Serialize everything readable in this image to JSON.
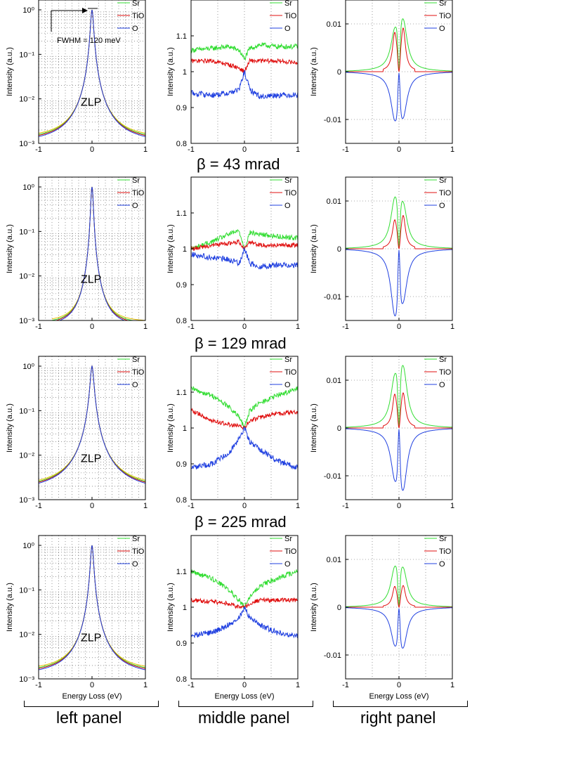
{
  "beta_titles": [
    "β = 43 mrad",
    "β = 129 mrad",
    "β = 225 mrad"
  ],
  "panel_labels": [
    "left panel",
    "middle panel",
    "right panel"
  ],
  "colors": {
    "Sr": "#33dd33",
    "TiO": "#e01010",
    "O": "#2040e0",
    "yellow": "#e8c000"
  },
  "chart_data": [
    {
      "type": "line",
      "panel": "left",
      "row": 0,
      "beta": "",
      "ylabel": "Intensity (a.u.)",
      "xlabel": "",
      "xlim": [
        -1,
        1
      ],
      "ylim": [
        0.001,
        1
      ],
      "yscale": "log",
      "xticks": [
        "-1",
        "0",
        "1"
      ],
      "yticks": [
        "10⁻³",
        "10⁻²",
        "10⁻¹",
        "10⁰"
      ],
      "legend": [
        "Sr",
        "TiO",
        "O"
      ],
      "annotations": [
        "FWHM = 120 meV",
        "ZLP"
      ],
      "peak": {
        "a": 0.025,
        "exponent": 2.1,
        "floor": 0.0011,
        "x_half_min": -1.0
      },
      "series": [
        {
          "name": "Sr"
        },
        {
          "name": "TiO"
        },
        {
          "name": "O"
        }
      ]
    },
    {
      "type": "line",
      "panel": "middle",
      "row": 0,
      "ylabel": "Intensity (a.u.)",
      "xlabel": "",
      "xlim": [
        -1,
        1
      ],
      "ylim": [
        0.8,
        1.2
      ],
      "xticks": [
        "-1",
        "0",
        "1"
      ],
      "yticks": [
        "0.8",
        "0.9",
        "1",
        "1.1"
      ],
      "legend": [
        "Sr",
        "TiO",
        "O"
      ],
      "series": [
        {
          "name": "Sr",
          "x": [
            -1,
            -0.6,
            -0.3,
            -0.1,
            0,
            0.1,
            0.3,
            0.6,
            1
          ],
          "y": [
            1.06,
            1.065,
            1.07,
            1.06,
            1.035,
            1.065,
            1.075,
            1.07,
            1.07
          ]
        },
        {
          "name": "TiO",
          "x": [
            -1,
            -0.6,
            -0.3,
            -0.1,
            0,
            0.1,
            0.3,
            0.6,
            1
          ],
          "y": [
            1.03,
            1.03,
            1.02,
            1.01,
            1.0,
            1.03,
            1.03,
            1.03,
            1.025
          ]
        },
        {
          "name": "O",
          "x": [
            -1,
            -0.6,
            -0.3,
            -0.1,
            0,
            0.1,
            0.3,
            0.6,
            1
          ],
          "y": [
            0.94,
            0.935,
            0.94,
            0.95,
            1.0,
            0.95,
            0.93,
            0.935,
            0.935
          ]
        }
      ]
    },
    {
      "type": "line",
      "panel": "right",
      "row": 0,
      "ylabel": "Intensity (a.u.)",
      "xlabel": "",
      "xlim": [
        -1,
        1
      ],
      "ylim": [
        -0.015,
        0.015
      ],
      "xticks": [
        "-1",
        "0",
        "1"
      ],
      "yticks": [
        "-0.01",
        "0",
        "0.01"
      ],
      "legend": [
        "Sr",
        "TiO",
        "O"
      ],
      "peaks": {
        "Sr": [
          0.0068,
          0.0092
        ],
        "TiO": [
          0.0075,
          0.0085
        ],
        "O": [
          -0.0082,
          -0.0075
        ]
      }
    },
    {
      "type": "line",
      "panel": "left",
      "row": 1,
      "ylabel": "Intensity (a.u.)",
      "xlabel": "",
      "xlim": [
        -1,
        1
      ],
      "ylim": [
        0.001,
        1
      ],
      "yscale": "log",
      "xticks": [
        "-1",
        "0",
        "1"
      ],
      "yticks": [
        "10⁻³",
        "10⁻²",
        "10⁻¹",
        "10⁰"
      ],
      "legend": [
        "Sr",
        "TiO",
        "O"
      ],
      "annotations": [
        "ZLP"
      ],
      "peak": {
        "a": 0.02,
        "exponent": 2.4,
        "floor": 0.0008,
        "x_half_min": -0.75
      },
      "series": [
        {
          "name": "Sr"
        },
        {
          "name": "TiO"
        },
        {
          "name": "O"
        }
      ]
    },
    {
      "type": "line",
      "panel": "middle",
      "row": 1,
      "ylabel": "Intensity (a.u.)",
      "xlabel": "",
      "xlim": [
        -1,
        1
      ],
      "ylim": [
        0.8,
        1.2
      ],
      "xticks": [
        "-1",
        "0",
        "1"
      ],
      "yticks": [
        "0.8",
        "0.9",
        "1",
        "1.1"
      ],
      "legend": [
        "Sr",
        "TiO",
        "O"
      ],
      "series": [
        {
          "name": "Sr",
          "x": [
            -1,
            -0.6,
            -0.3,
            -0.1,
            0,
            0.1,
            0.3,
            0.6,
            1
          ],
          "y": [
            1.0,
            1.02,
            1.04,
            1.05,
            1.0,
            1.045,
            1.04,
            1.035,
            1.03
          ]
        },
        {
          "name": "TiO",
          "x": [
            -1,
            -0.6,
            -0.3,
            -0.1,
            0,
            0.1,
            0.3,
            0.6,
            1
          ],
          "y": [
            1.0,
            1.01,
            1.015,
            1.02,
            1.0,
            1.02,
            1.01,
            1.01,
            1.01
          ]
        },
        {
          "name": "O",
          "x": [
            -1,
            -0.6,
            -0.3,
            -0.1,
            0,
            0.1,
            0.3,
            0.6,
            1
          ],
          "y": [
            0.985,
            0.975,
            0.97,
            0.96,
            1.0,
            0.96,
            0.95,
            0.955,
            0.955
          ]
        }
      ]
    },
    {
      "type": "line",
      "panel": "right",
      "row": 1,
      "ylabel": "Intensity (a.u.)",
      "xlabel": "",
      "xlim": [
        -1,
        1
      ],
      "ylim": [
        -0.015,
        0.015
      ],
      "xticks": [
        "-1",
        "0",
        "1"
      ],
      "yticks": [
        "-0.01",
        "0",
        "0.01"
      ],
      "legend": [
        "Sr",
        "TiO",
        "O"
      ],
      "peaks": {
        "Sr": [
          0.0088,
          0.0075
        ],
        "TiO": [
          0.0055,
          0.0065
        ],
        "O": [
          -0.0118,
          -0.0082
        ]
      }
    },
    {
      "type": "line",
      "panel": "left",
      "row": 2,
      "ylabel": "Intensity (a.u.)",
      "xlabel": "",
      "xlim": [
        -1,
        1
      ],
      "ylim": [
        0.001,
        1
      ],
      "yscale": "log",
      "xticks": [
        "-1",
        "0",
        "1"
      ],
      "yticks": [
        "10⁻³",
        "10⁻²",
        "10⁻¹",
        "10⁰"
      ],
      "legend": [
        "Sr",
        "TiO",
        "O"
      ],
      "annotations": [
        "ZLP"
      ],
      "peak": {
        "a": 0.03,
        "exponent": 2.0,
        "floor": 0.0016,
        "x_half_min": -1.0
      },
      "series": [
        {
          "name": "Sr"
        },
        {
          "name": "TiO"
        },
        {
          "name": "O"
        }
      ]
    },
    {
      "type": "line",
      "panel": "middle",
      "row": 2,
      "ylabel": "Intensity (a.u.)",
      "xlabel": "",
      "xlim": [
        -1,
        1
      ],
      "ylim": [
        0.8,
        1.2
      ],
      "xticks": [
        "-1",
        "0",
        "1"
      ],
      "yticks": [
        "0.8",
        "0.9",
        "1",
        "1.1"
      ],
      "legend": [
        "Sr",
        "TiO",
        "O"
      ],
      "series": [
        {
          "name": "Sr",
          "x": [
            -1,
            -0.6,
            -0.3,
            -0.1,
            0,
            0.1,
            0.3,
            0.6,
            1
          ],
          "y": [
            1.11,
            1.09,
            1.06,
            1.03,
            1.0,
            1.05,
            1.07,
            1.09,
            1.11
          ]
        },
        {
          "name": "TiO",
          "x": [
            -1,
            -0.6,
            -0.3,
            -0.1,
            0,
            0.1,
            0.3,
            0.6,
            1
          ],
          "y": [
            1.05,
            1.02,
            1.01,
            1.005,
            1.0,
            1.02,
            1.03,
            1.04,
            1.045
          ]
        },
        {
          "name": "O",
          "x": [
            -1,
            -0.6,
            -0.3,
            -0.1,
            0,
            0.1,
            0.3,
            0.6,
            1
          ],
          "y": [
            0.89,
            0.9,
            0.93,
            0.97,
            1.0,
            0.96,
            0.94,
            0.91,
            0.89
          ]
        }
      ]
    },
    {
      "type": "line",
      "panel": "right",
      "row": 2,
      "ylabel": "Intensity (a.u.)",
      "xlabel": "",
      "xlim": [
        -1,
        1
      ],
      "ylim": [
        -0.015,
        0.015
      ],
      "xticks": [
        "-1",
        "0",
        "1"
      ],
      "yticks": [
        "-0.01",
        "0",
        "0.01"
      ],
      "legend": [
        "Sr",
        "TiO",
        "O"
      ],
      "peaks": {
        "Sr": [
          0.0085,
          0.0108
        ],
        "TiO": [
          0.0065,
          0.0068
        ],
        "O": [
          -0.0082,
          -0.0108
        ]
      }
    },
    {
      "type": "line",
      "panel": "left",
      "row": 3,
      "ylabel": "Intensity (a.u.)",
      "xlabel": "Energy Loss (eV)",
      "xlim": [
        -1,
        1
      ],
      "ylim": [
        0.001,
        1
      ],
      "yscale": "log",
      "xticks": [
        "-1",
        "0",
        "1"
      ],
      "yticks": [
        "10⁻³",
        "10⁻²",
        "10⁻¹",
        "10⁰"
      ],
      "legend": [
        "Sr",
        "TiO",
        "O"
      ],
      "annotations": [
        "ZLP"
      ],
      "peak": {
        "a": 0.025,
        "exponent": 2.1,
        "floor": 0.0013,
        "x_half_min": -1.0
      },
      "series": [
        {
          "name": "Sr"
        },
        {
          "name": "TiO"
        },
        {
          "name": "O"
        }
      ]
    },
    {
      "type": "line",
      "panel": "middle",
      "row": 3,
      "ylabel": "Intensity (a.u.)",
      "xlabel": "Energy Loss (eV)",
      "xlim": [
        -1,
        1
      ],
      "ylim": [
        0.8,
        1.2
      ],
      "xticks": [
        "-1",
        "0",
        "1"
      ],
      "yticks": [
        "0.8",
        "0.9",
        "1",
        "1.1"
      ],
      "legend": [
        "Sr",
        "TiO",
        "O"
      ],
      "series": [
        {
          "name": "Sr",
          "x": [
            -1,
            -0.6,
            -0.3,
            -0.1,
            0,
            0.1,
            0.3,
            0.6,
            1
          ],
          "y": [
            1.1,
            1.08,
            1.05,
            1.02,
            1.0,
            1.03,
            1.06,
            1.08,
            1.1
          ]
        },
        {
          "name": "TiO",
          "x": [
            -1,
            -0.6,
            -0.3,
            -0.1,
            0,
            0.1,
            0.3,
            0.6,
            1
          ],
          "y": [
            1.02,
            1.015,
            1.01,
            1.0,
            1.0,
            1.01,
            1.02,
            1.02,
            1.02
          ]
        },
        {
          "name": "O",
          "x": [
            -1,
            -0.6,
            -0.3,
            -0.1,
            0,
            0.1,
            0.3,
            0.6,
            1
          ],
          "y": [
            0.92,
            0.93,
            0.95,
            0.97,
            1.0,
            0.97,
            0.95,
            0.93,
            0.92
          ]
        }
      ]
    },
    {
      "type": "line",
      "panel": "right",
      "row": 3,
      "ylabel": "Intensity (a.u.)",
      "xlabel": "Energy Loss (eV)",
      "xlim": [
        -1,
        1
      ],
      "ylim": [
        -0.015,
        0.015
      ],
      "xticks": [
        "-1",
        "0",
        "1"
      ],
      "yticks": [
        "-0.01",
        "0",
        "0.01"
      ],
      "legend": [
        "Sr",
        "TiO",
        "O"
      ],
      "peaks": {
        "Sr": [
          0.0068,
          0.0065
        ],
        "TiO": [
          0.004,
          0.0042
        ],
        "O": [
          -0.0062,
          -0.0068
        ]
      }
    }
  ]
}
